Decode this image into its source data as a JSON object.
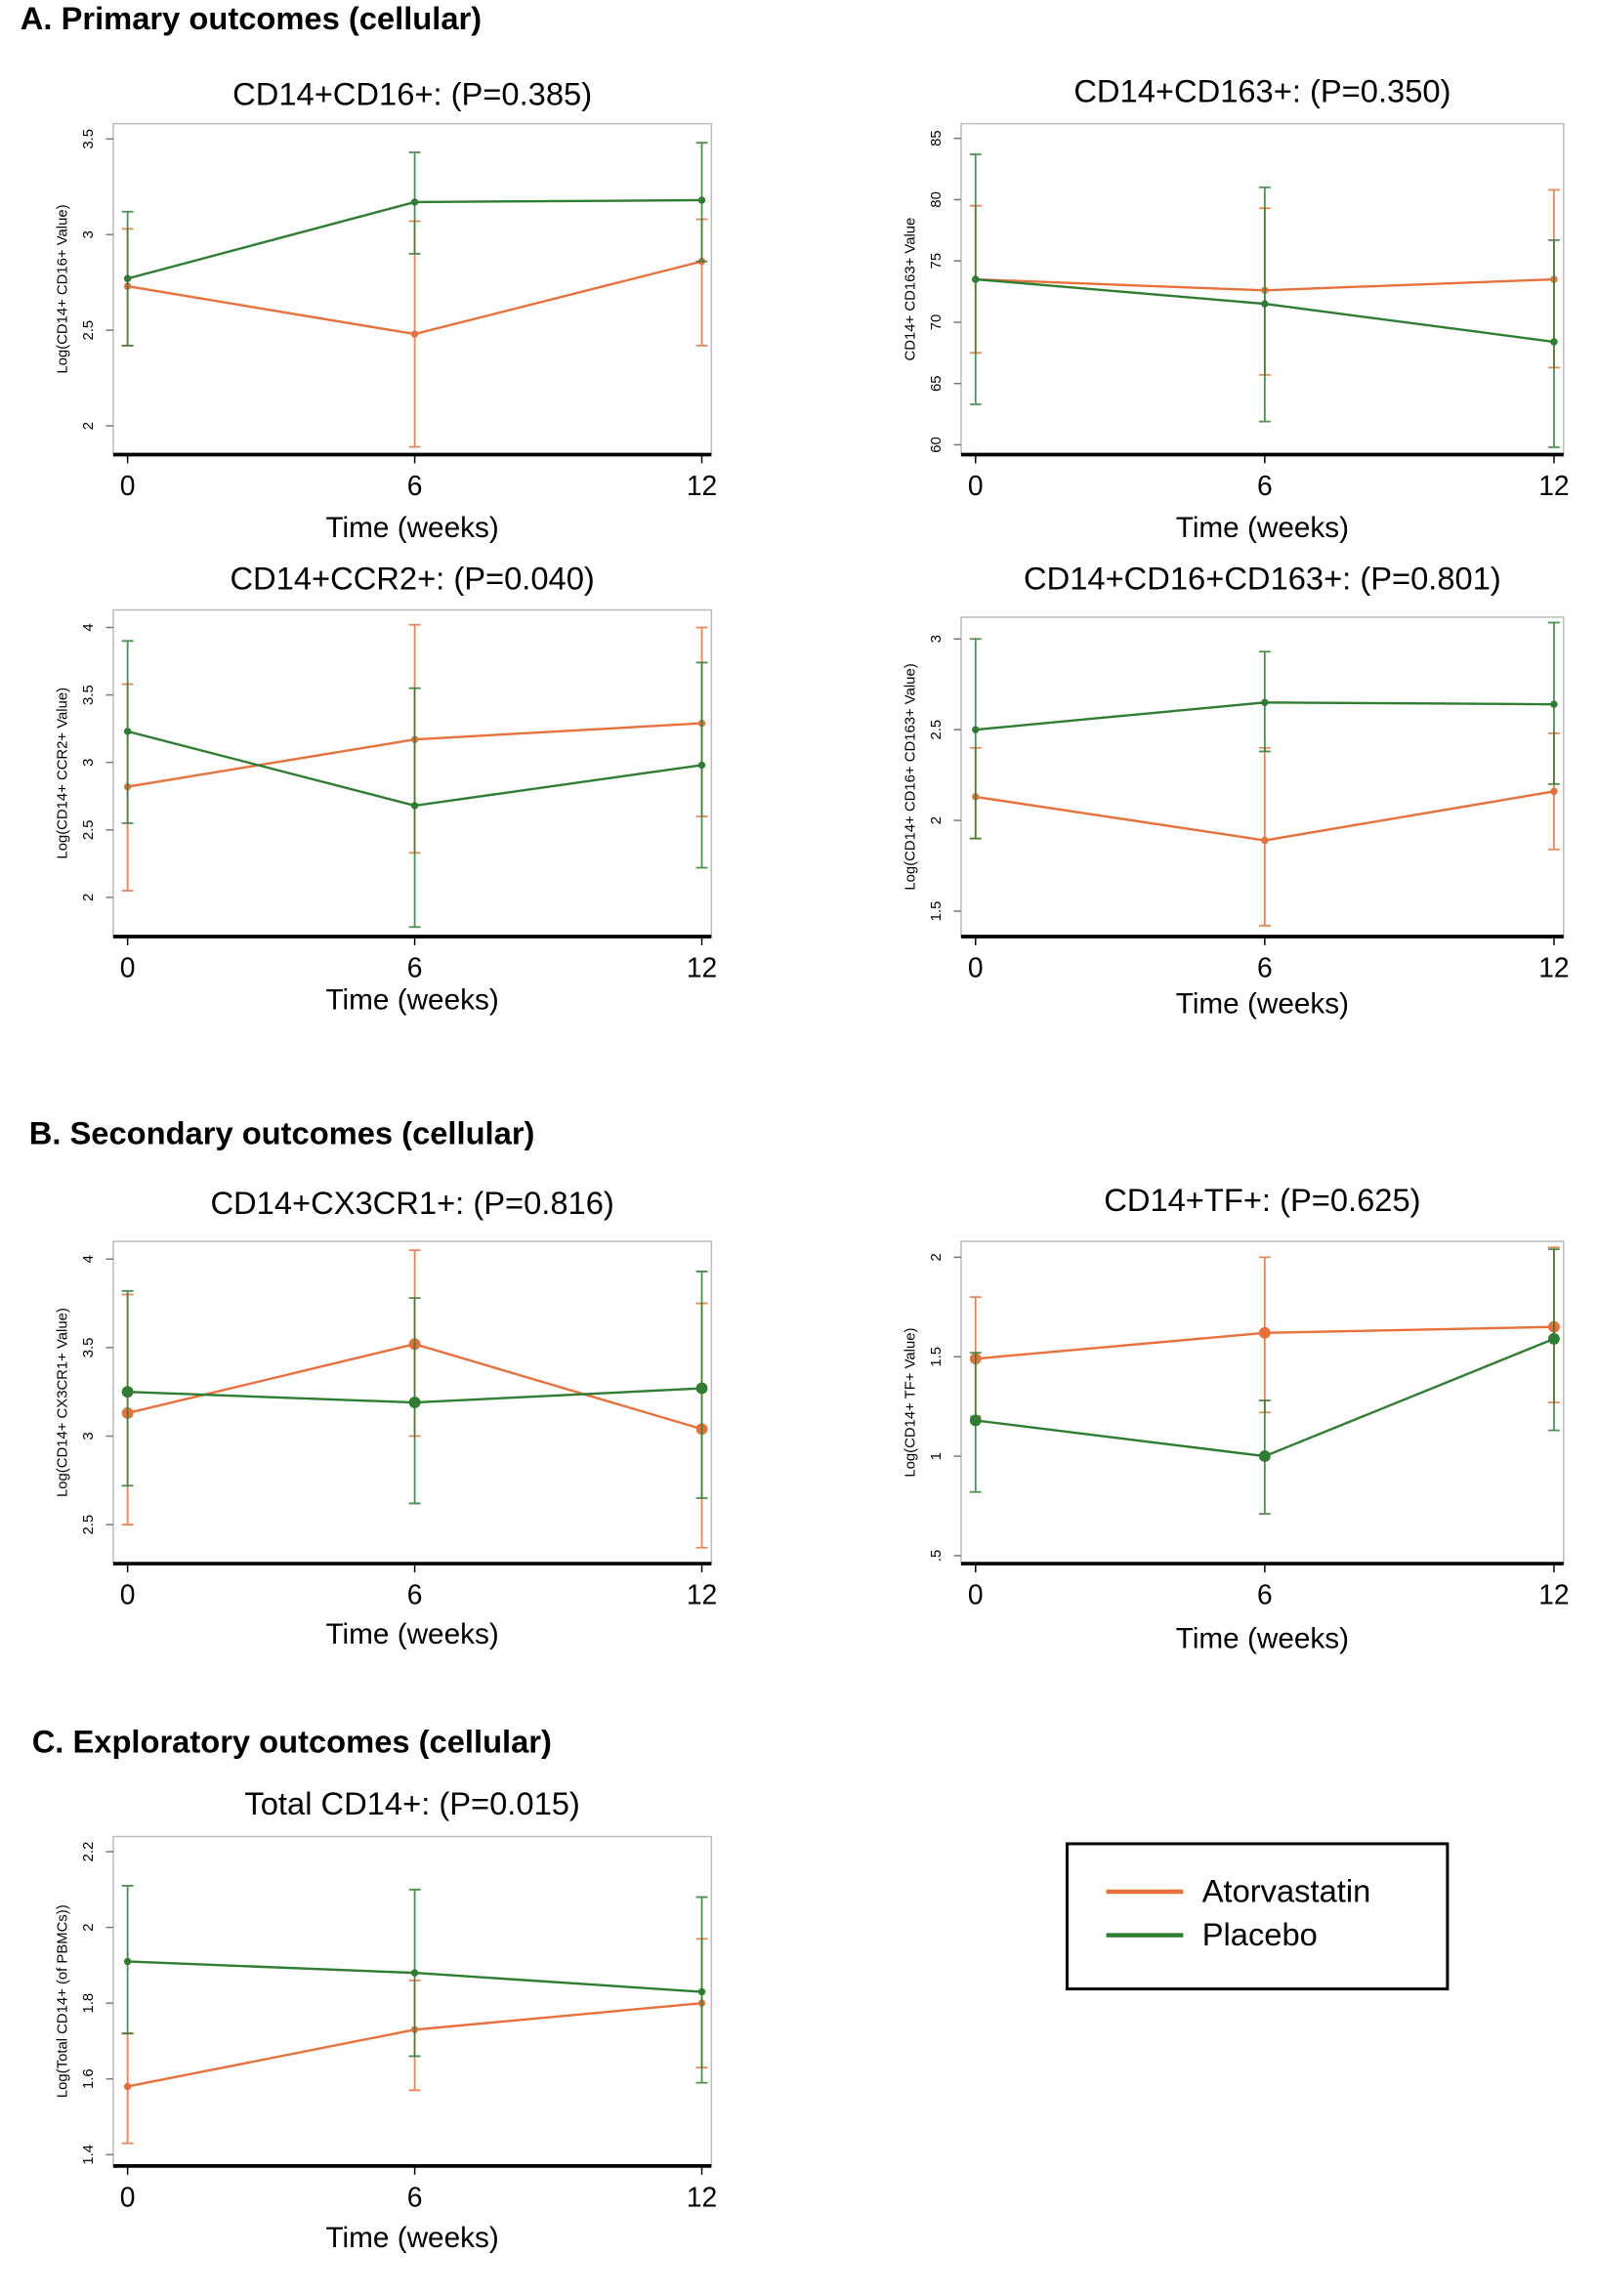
{
  "sections": [
    "A. Primary outcomes (cellular)",
    "B. Secondary outcomes (cellular)",
    "C. Exploratory outcomes (cellular)"
  ],
  "chart_data": [
    {
      "type": "line",
      "title": "CD14+CD16+: (P=0.385)",
      "x_label": "Time (weeks)",
      "y_label": "Log(CD14+ CD16+ Value)",
      "x": [
        0,
        6,
        12
      ],
      "xlim": [
        -0.3,
        12.2
      ],
      "xticks": [
        0,
        6,
        12
      ],
      "ylim": [
        1.85,
        3.58
      ],
      "yticks": [
        2,
        2.5,
        3,
        3.5
      ],
      "series": [
        {
          "name": "Atorvastatin",
          "color": "#e8703a",
          "values": [
            2.73,
            2.48,
            2.86
          ],
          "lower": [
            2.42,
            1.89,
            2.42
          ],
          "upper": [
            3.03,
            3.07,
            3.08
          ]
        },
        {
          "name": "Placebo",
          "color": "#2e7d32",
          "values": [
            2.77,
            3.17,
            3.18
          ],
          "lower": [
            2.42,
            2.9,
            2.86
          ],
          "upper": [
            3.12,
            3.43,
            3.48
          ]
        }
      ]
    },
    {
      "type": "line",
      "title": "CD14+CD163+: (P=0.350)",
      "x_label": "Time (weeks)",
      "y_label": "CD14+ CD163+ Value",
      "x": [
        0,
        6,
        12
      ],
      "xlim": [
        -0.3,
        12.2
      ],
      "xticks": [
        0,
        6,
        12
      ],
      "ylim": [
        59.2,
        86.2
      ],
      "yticks": [
        60,
        65,
        70,
        75,
        80,
        85
      ],
      "series": [
        {
          "name": "Atorvastatin",
          "color": "#e8703a",
          "values": [
            73.5,
            72.6,
            73.5
          ],
          "lower": [
            67.5,
            65.7,
            66.3
          ],
          "upper": [
            79.5,
            79.3,
            80.8
          ]
        },
        {
          "name": "Placebo",
          "color": "#2e7d32",
          "values": [
            73.5,
            71.5,
            68.4
          ],
          "lower": [
            63.3,
            61.9,
            59.8
          ],
          "upper": [
            83.7,
            81,
            76.7
          ]
        }
      ]
    },
    {
      "type": "line",
      "title": "CD14+CCR2+: (P=0.040)",
      "x_label": "Time (weeks)",
      "y_label": "Log(CD14+ CCR2+ Value)",
      "x": [
        0,
        6,
        12
      ],
      "xlim": [
        -0.3,
        12.2
      ],
      "xticks": [
        0,
        6,
        12
      ],
      "ylim": [
        1.71,
        4.13
      ],
      "yticks": [
        2,
        2.5,
        3,
        3.5,
        4
      ],
      "series": [
        {
          "name": "Atorvastatin",
          "color": "#e8703a",
          "values": [
            2.82,
            3.17,
            3.29
          ],
          "lower": [
            2.05,
            2.33,
            2.6
          ],
          "upper": [
            3.58,
            4.02,
            4.0
          ]
        },
        {
          "name": "Placebo",
          "color": "#2e7d32",
          "values": [
            3.23,
            2.68,
            2.98
          ],
          "lower": [
            2.55,
            1.78,
            2.22
          ],
          "upper": [
            3.9,
            3.55,
            3.74
          ]
        }
      ]
    },
    {
      "type": "line",
      "title": "CD14+CD16+CD163+: (P=0.801)",
      "x_label": "Time (weeks)",
      "y_label": "Log(CD14+ CD16+ CD163+ Value)",
      "x": [
        0,
        6,
        12
      ],
      "xlim": [
        -0.3,
        12.2
      ],
      "xticks": [
        0,
        6,
        12
      ],
      "ylim": [
        1.36,
        3.12
      ],
      "yticks": [
        1.5,
        2,
        2.5,
        3
      ],
      "series": [
        {
          "name": "Atorvastatin",
          "color": "#e8703a",
          "values": [
            2.13,
            1.89,
            2.16
          ],
          "lower": [
            1.9,
            1.42,
            1.84
          ],
          "upper": [
            2.4,
            2.4,
            2.48
          ]
        },
        {
          "name": "Placebo",
          "color": "#2e7d32",
          "values": [
            2.5,
            2.65,
            2.64
          ],
          "lower": [
            1.9,
            2.38,
            2.2
          ],
          "upper": [
            3.0,
            2.93,
            3.09
          ]
        }
      ]
    },
    {
      "type": "line",
      "title": "CD14+CX3CR1+: (P=0.816)",
      "x_label": "Time (weeks)",
      "y_label": "Log(CD14+ CX3CR1+ Value)",
      "x": [
        0,
        6,
        12
      ],
      "xlim": [
        -0.3,
        12.2
      ],
      "xticks": [
        0,
        6,
        12
      ],
      "ylim": [
        2.28,
        4.1
      ],
      "yticks": [
        2.5,
        3,
        3.5,
        4
      ],
      "series": [
        {
          "name": "Atorvastatin",
          "color": "#e8703a",
          "values": [
            3.13,
            3.52,
            3.04
          ],
          "lower": [
            2.5,
            3.0,
            2.37
          ],
          "upper": [
            3.8,
            4.05,
            3.75
          ]
        },
        {
          "name": "Placebo",
          "color": "#2e7d32",
          "values": [
            3.25,
            3.19,
            3.27
          ],
          "lower": [
            2.72,
            2.62,
            2.65
          ],
          "upper": [
            3.82,
            3.78,
            3.93
          ]
        }
      ]
    },
    {
      "type": "line",
      "title": "CD14+TF+: (P=0.625)",
      "x_label": "Time (weeks)",
      "y_label": "Log(CD14+ TF+ Value)",
      "x": [
        0,
        6,
        12
      ],
      "xlim": [
        -0.3,
        12.2
      ],
      "xticks": [
        0,
        6,
        12
      ],
      "ylim": [
        0.46,
        2.08
      ],
      "yticks": [
        {
          "value": 0.5,
          "label": ".5"
        },
        1,
        1.5,
        2
      ],
      "series": [
        {
          "name": "Atorvastatin",
          "color": "#e8703a",
          "values": [
            1.49,
            1.62,
            1.65
          ],
          "lower": [
            1.2,
            1.22,
            1.27
          ],
          "upper": [
            1.8,
            2.0,
            2.05
          ]
        },
        {
          "name": "Placebo",
          "color": "#2e7d32",
          "values": [
            1.18,
            1.0,
            1.59
          ],
          "lower": [
            0.82,
            0.71,
            1.13
          ],
          "upper": [
            1.52,
            1.28,
            2.04
          ]
        }
      ]
    },
    {
      "type": "line",
      "title": "Total CD14+: (P=0.015)",
      "x_label": "Time (weeks)",
      "y_label": "Log(Total CD14+ (of PBMCs))",
      "x": [
        0,
        6,
        12
      ],
      "xlim": [
        -0.3,
        12.2
      ],
      "xticks": [
        0,
        6,
        12
      ],
      "ylim": [
        1.37,
        2.24
      ],
      "yticks": [
        1.4,
        1.6,
        1.8,
        2,
        2.2
      ],
      "series": [
        {
          "name": "Atorvastatin",
          "color": "#e8703a",
          "values": [
            1.58,
            1.73,
            1.8
          ],
          "lower": [
            1.43,
            1.57,
            1.63
          ],
          "upper": [
            1.72,
            1.86,
            1.97
          ]
        },
        {
          "name": "Placebo",
          "color": "#2e7d32",
          "values": [
            1.91,
            1.88,
            1.83
          ],
          "lower": [
            1.72,
            1.66,
            1.59
          ],
          "upper": [
            2.11,
            2.1,
            2.08
          ]
        }
      ]
    }
  ]
}
